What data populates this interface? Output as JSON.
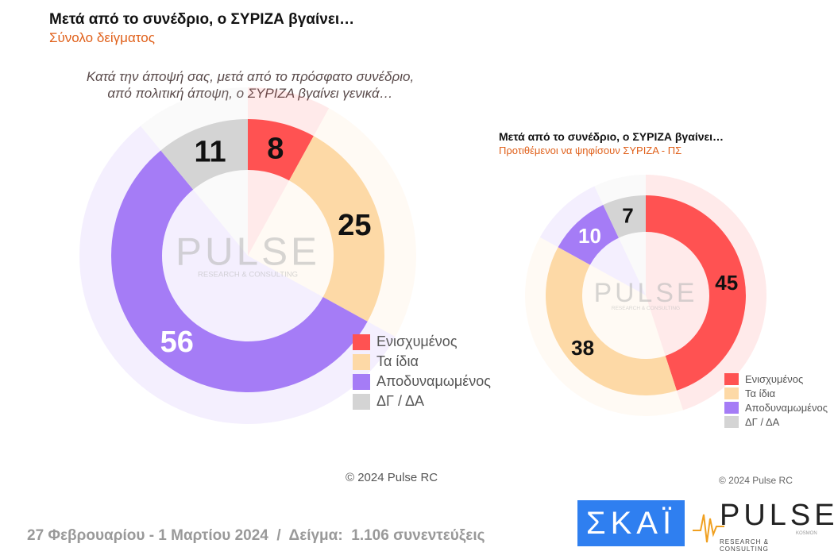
{
  "main": {
    "title": "Μετά από το συνέδριο, ο ΣΥΡΙΖΑ βγαίνει…",
    "subtitle": "Σύνολο δείγματος",
    "question_line1": "Κατά την άποψή σας, μετά από το πρόσφατο συνέδριο,",
    "question_line2": "από πολιτική άποψη, ο ΣΥΡΙΖΑ βγαίνει γενικά…",
    "copyright": "© 2024 Pulse RC"
  },
  "secondary": {
    "title": "Μετά από το συνέδριο, ο ΣΥΡΙΖΑ βγαίνει…",
    "subtitle": "Προτιθέμενοι να ψηφίσουν ΣΥΡΙΖΑ - ΠΣ",
    "copyright": "© 2024 Pulse RC"
  },
  "footer": {
    "text": "27 Φεβρουαρίου - 1 Μαρτίου 2024  /  Δείγμα:  1.106 συνεντεύξεις",
    "logo_skai": "ΣΚΑΪ",
    "logo_pulse": "PULSE",
    "logo_pulse_tag": "RESEARCH & CONSULTING",
    "logo_pulse_small": "KOSMON"
  },
  "watermark": {
    "main": "PULSE",
    "tag": "RESEARCH & CONSULTING"
  },
  "chart_data": [
    {
      "type": "pie",
      "donut": true,
      "categories": [
        "Ενισχυμένος",
        "Τα ίδια",
        "Αποδυναμωμένος",
        "ΔΓ / ΔΑ"
      ],
      "values": [
        8,
        25,
        56,
        11
      ],
      "colors": [
        "#ff5252",
        "#fdd9a6",
        "#a57cf6",
        "#d4d4d4"
      ],
      "legend": "bottom-right"
    },
    {
      "type": "pie",
      "donut": true,
      "categories": [
        "Ενισχυμένος",
        "Τα ίδια",
        "Αποδυναμωμένος",
        "ΔΓ / ΔΑ"
      ],
      "values": [
        45,
        38,
        10,
        7
      ],
      "colors": [
        "#ff5252",
        "#fdd9a6",
        "#a57cf6",
        "#d4d4d4"
      ],
      "legend": "bottom-right"
    }
  ]
}
